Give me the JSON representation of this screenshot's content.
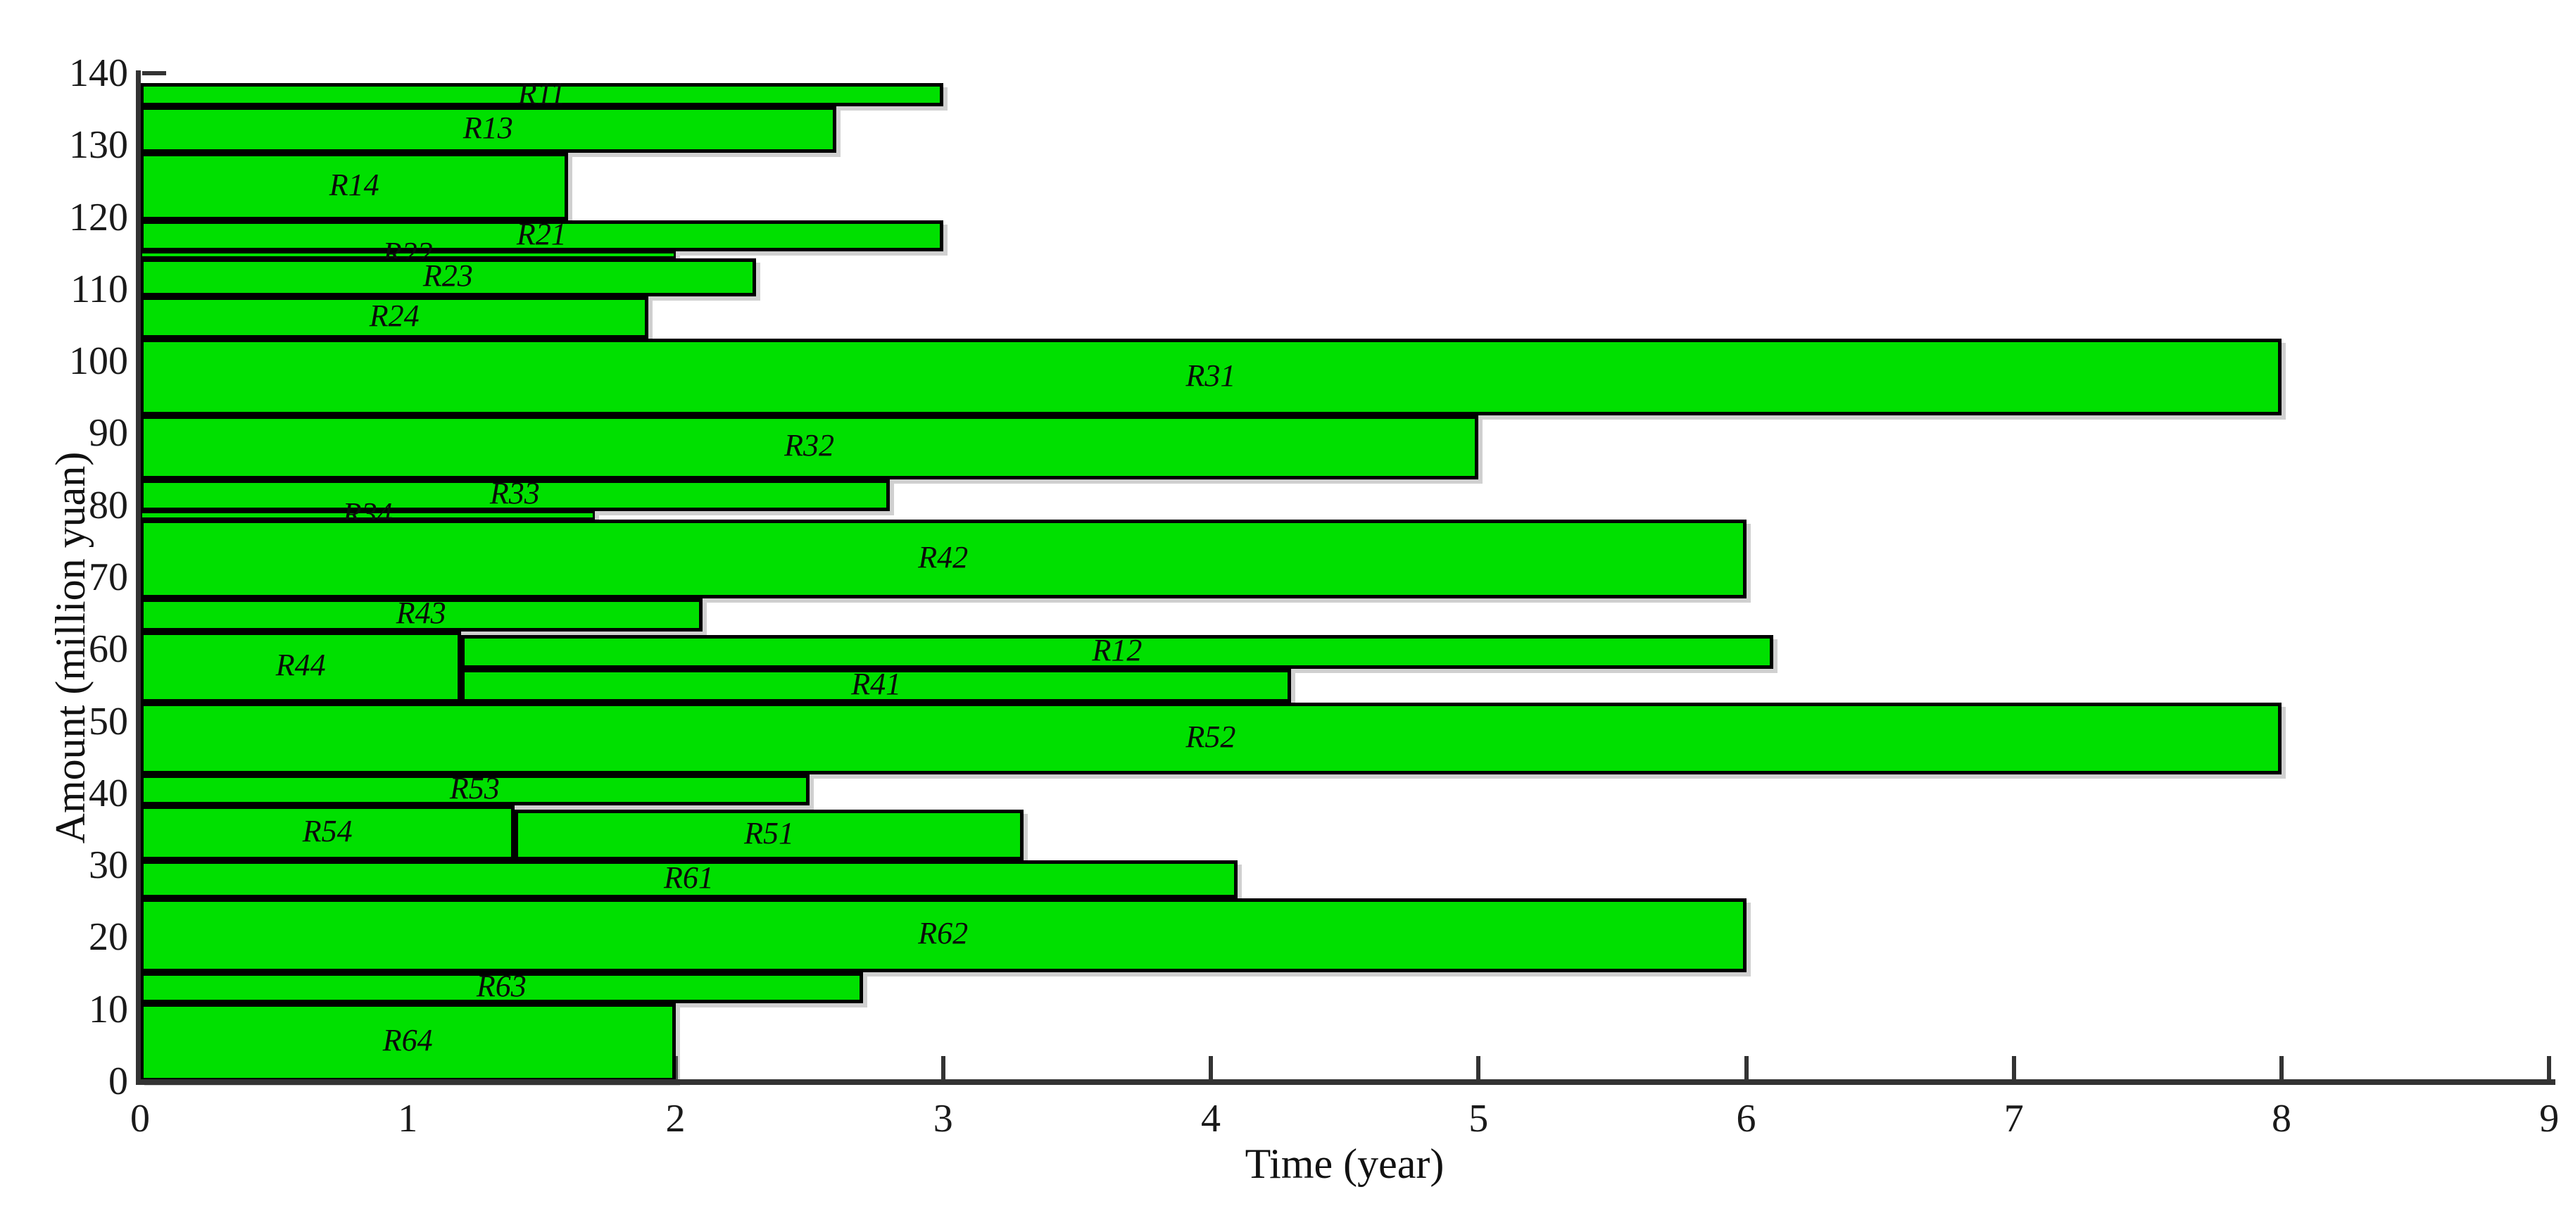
{
  "figure": {
    "xlabel": "Time (year)",
    "ylabel": "Amount (million yuan)",
    "background_color": "#ffffff",
    "bar_fill_color": "#00e000",
    "bar_border_color": "#000000",
    "axis_color": "#333333",
    "tick_label_color": "#1a1a1a"
  },
  "chart_data": {
    "type": "bar",
    "subtype": "gantt-time-cost",
    "title": "",
    "xlabel": "Time (year)",
    "ylabel": "Amount (million yuan)",
    "xlim": [
      0,
      9
    ],
    "ylim": [
      0,
      140
    ],
    "grid": false,
    "legend": false,
    "x_ticks": [
      "0",
      "1",
      "2",
      "3",
      "4",
      "5",
      "6",
      "7",
      "8",
      "9"
    ],
    "y_ticks": [
      "0",
      "10",
      "20",
      "30",
      "40",
      "50",
      "60",
      "70",
      "80",
      "90",
      "100",
      "110",
      "120",
      "130",
      "140"
    ],
    "bars": [
      {
        "label": "R11",
        "x_start": 0.0,
        "x_end": 3.0,
        "y_top": 138.6,
        "y_bottom": 135.4,
        "duration": 3.0,
        "amount": 3.2
      },
      {
        "label": "R13",
        "x_start": 0.0,
        "x_end": 2.6,
        "y_top": 135.4,
        "y_bottom": 128.9,
        "duration": 2.6,
        "amount": 6.5
      },
      {
        "label": "R14",
        "x_start": 0.0,
        "x_end": 1.6,
        "y_top": 128.9,
        "y_bottom": 119.6,
        "duration": 1.6,
        "amount": 9.3
      },
      {
        "label": "R21",
        "x_start": 0.0,
        "x_end": 3.0,
        "y_top": 119.6,
        "y_bottom": 115.3,
        "duration": 3.0,
        "amount": 4.3
      },
      {
        "label": "R22",
        "x_start": 0.0,
        "x_end": 2.0,
        "y_top": 115.3,
        "y_bottom": 114.3,
        "duration": 2.0,
        "amount": 1.0
      },
      {
        "label": "R23",
        "x_start": 0.0,
        "x_end": 2.3,
        "y_top": 114.3,
        "y_bottom": 109.0,
        "duration": 2.3,
        "amount": 5.3
      },
      {
        "label": "R24",
        "x_start": 0.0,
        "x_end": 1.9,
        "y_top": 109.0,
        "y_bottom": 103.1,
        "duration": 1.9,
        "amount": 5.9
      },
      {
        "label": "R31",
        "x_start": 0.0,
        "x_end": 8.0,
        "y_top": 103.1,
        "y_bottom": 92.5,
        "duration": 8.0,
        "amount": 10.6
      },
      {
        "label": "R32",
        "x_start": 0.0,
        "x_end": 5.0,
        "y_top": 92.5,
        "y_bottom": 83.6,
        "duration": 5.0,
        "amount": 8.9
      },
      {
        "label": "R33",
        "x_start": 0.0,
        "x_end": 2.8,
        "y_top": 83.6,
        "y_bottom": 79.2,
        "duration": 2.8,
        "amount": 4.4
      },
      {
        "label": "R34",
        "x_start": 0.0,
        "x_end": 1.7,
        "y_top": 79.2,
        "y_bottom": 78.0,
        "duration": 1.7,
        "amount": 1.2
      },
      {
        "label": "R42",
        "x_start": 0.0,
        "x_end": 6.0,
        "y_top": 78.0,
        "y_bottom": 67.1,
        "duration": 6.0,
        "amount": 10.9
      },
      {
        "label": "R43",
        "x_start": 0.0,
        "x_end": 2.1,
        "y_top": 67.1,
        "y_bottom": 62.5,
        "duration": 2.1,
        "amount": 4.6
      },
      {
        "label": "R44",
        "x_start": 0.0,
        "x_end": 1.2,
        "y_top": 62.5,
        "y_bottom": 52.6,
        "duration": 1.2,
        "amount": 9.9
      },
      {
        "label": "R12",
        "x_start": 1.2,
        "x_end": 6.1,
        "y_top": 62.0,
        "y_bottom": 57.3,
        "duration": 4.9,
        "amount": 4.7
      },
      {
        "label": "R41",
        "x_start": 1.2,
        "x_end": 4.3,
        "y_top": 57.3,
        "y_bottom": 52.6,
        "duration": 3.1,
        "amount": 4.7
      },
      {
        "label": "R52",
        "x_start": 0.0,
        "x_end": 8.0,
        "y_top": 52.6,
        "y_bottom": 42.6,
        "duration": 8.0,
        "amount": 10.0
      },
      {
        "label": "R53",
        "x_start": 0.0,
        "x_end": 2.5,
        "y_top": 42.6,
        "y_bottom": 38.3,
        "duration": 2.5,
        "amount": 4.3
      },
      {
        "label": "R54",
        "x_start": 0.0,
        "x_end": 1.4,
        "y_top": 38.3,
        "y_bottom": 30.7,
        "duration": 1.4,
        "amount": 7.6
      },
      {
        "label": "R51",
        "x_start": 1.4,
        "x_end": 3.3,
        "y_top": 37.7,
        "y_bottom": 30.7,
        "duration": 1.9,
        "amount": 7.0
      },
      {
        "label": "R61",
        "x_start": 0.0,
        "x_end": 4.1,
        "y_top": 30.7,
        "y_bottom": 25.4,
        "duration": 4.1,
        "amount": 5.3
      },
      {
        "label": "R62",
        "x_start": 0.0,
        "x_end": 6.0,
        "y_top": 25.4,
        "y_bottom": 15.2,
        "duration": 6.0,
        "amount": 10.2
      },
      {
        "label": "R63",
        "x_start": 0.0,
        "x_end": 2.7,
        "y_top": 15.2,
        "y_bottom": 10.9,
        "duration": 2.7,
        "amount": 4.3
      },
      {
        "label": "R64",
        "x_start": 0.0,
        "x_end": 2.0,
        "y_top": 10.9,
        "y_bottom": 0.0,
        "duration": 2.0,
        "amount": 10.9
      }
    ]
  }
}
